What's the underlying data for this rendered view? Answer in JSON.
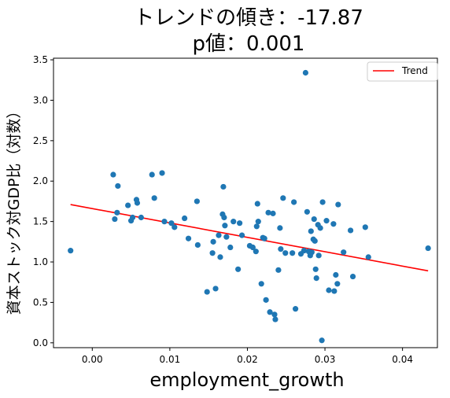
{
  "chart_data": {
    "type": "scatter",
    "title_lines": [
      "トレンドの傾き：-17.87",
      "p値：0.001"
    ],
    "xlabel": "employment_growth",
    "ylabel": "資本ストック対GDP比（対数）",
    "xlim": [
      -0.005,
      0.0445
    ],
    "ylim": [
      -0.06,
      3.52
    ],
    "xticks": [
      0.0,
      0.01,
      0.02,
      0.03,
      0.04
    ],
    "xtick_labels": [
      "0.00",
      "0.01",
      "0.02",
      "0.03",
      "0.04"
    ],
    "yticks": [
      0.0,
      0.5,
      1.0,
      1.5,
      2.0,
      2.5,
      3.0,
      3.5
    ],
    "ytick_labels": [
      "0.0",
      "0.5",
      "1.0",
      "1.5",
      "2.0",
      "2.5",
      "3.0",
      "3.5"
    ],
    "grid": false,
    "legend_position": "top-right",
    "point_color": "#1f77b4",
    "trend": {
      "name": "Trend",
      "color": "#ff0000",
      "x": [
        -0.0028,
        0.0433
      ],
      "y": [
        1.71,
        0.89
      ]
    },
    "points": [
      [
        -0.0028,
        1.14
      ],
      [
        0.0027,
        2.08
      ],
      [
        0.0029,
        1.53
      ],
      [
        0.0032,
        1.61
      ],
      [
        0.0033,
        1.94
      ],
      [
        0.0046,
        1.7
      ],
      [
        0.005,
        1.51
      ],
      [
        0.0052,
        1.55
      ],
      [
        0.0057,
        1.77
      ],
      [
        0.0058,
        1.73
      ],
      [
        0.0063,
        1.55
      ],
      [
        0.0077,
        2.08
      ],
      [
        0.008,
        1.79
      ],
      [
        0.009,
        2.1
      ],
      [
        0.0093,
        1.5
      ],
      [
        0.0102,
        1.48
      ],
      [
        0.0106,
        1.43
      ],
      [
        0.0119,
        1.54
      ],
      [
        0.0124,
        1.29
      ],
      [
        0.0135,
        1.75
      ],
      [
        0.0136,
        1.21
      ],
      [
        0.0148,
        0.63
      ],
      [
        0.0155,
        1.11
      ],
      [
        0.0156,
        1.25
      ],
      [
        0.0159,
        0.67
      ],
      [
        0.0163,
        1.33
      ],
      [
        0.0165,
        1.06
      ],
      [
        0.0168,
        1.59
      ],
      [
        0.0169,
        1.93
      ],
      [
        0.017,
        1.55
      ],
      [
        0.0171,
        1.45
      ],
      [
        0.0173,
        1.31
      ],
      [
        0.0178,
        1.18
      ],
      [
        0.0182,
        1.5
      ],
      [
        0.0188,
        0.91
      ],
      [
        0.019,
        1.48
      ],
      [
        0.0193,
        1.33
      ],
      [
        0.0203,
        1.2
      ],
      [
        0.0207,
        1.18
      ],
      [
        0.0211,
        1.13
      ],
      [
        0.0212,
        1.44
      ],
      [
        0.0213,
        1.72
      ],
      [
        0.0214,
        1.5
      ],
      [
        0.0218,
        0.73
      ],
      [
        0.022,
        1.3
      ],
      [
        0.0222,
        1.29
      ],
      [
        0.0224,
        0.53
      ],
      [
        0.0227,
        1.61
      ],
      [
        0.0229,
        0.38
      ],
      [
        0.0233,
        1.6
      ],
      [
        0.0235,
        0.35
      ],
      [
        0.0236,
        0.29
      ],
      [
        0.024,
        0.9
      ],
      [
        0.0242,
        1.42
      ],
      [
        0.0243,
        1.16
      ],
      [
        0.0246,
        1.79
      ],
      [
        0.0249,
        1.11
      ],
      [
        0.0258,
        1.11
      ],
      [
        0.026,
        1.74
      ],
      [
        0.0262,
        0.42
      ],
      [
        0.0269,
        1.1
      ],
      [
        0.0273,
        1.14
      ],
      [
        0.0275,
        3.34
      ],
      [
        0.0277,
        1.62
      ],
      [
        0.0279,
        1.13
      ],
      [
        0.0281,
        1.08
      ],
      [
        0.0282,
        1.38
      ],
      [
        0.0283,
        1.12
      ],
      [
        0.0285,
        1.28
      ],
      [
        0.0286,
        1.53
      ],
      [
        0.0287,
        1.26
      ],
      [
        0.0288,
        0.91
      ],
      [
        0.0289,
        0.8
      ],
      [
        0.0291,
        1.46
      ],
      [
        0.0292,
        1.08
      ],
      [
        0.0294,
        1.42
      ],
      [
        0.0296,
        0.03
      ],
      [
        0.0297,
        1.74
      ],
      [
        0.0302,
        1.51
      ],
      [
        0.0305,
        0.65
      ],
      [
        0.0311,
        1.47
      ],
      [
        0.0312,
        0.64
      ],
      [
        0.0314,
        0.84
      ],
      [
        0.0316,
        0.73
      ],
      [
        0.0317,
        1.71
      ],
      [
        0.0324,
        1.12
      ],
      [
        0.0333,
        1.39
      ],
      [
        0.0336,
        0.82
      ],
      [
        0.0352,
        1.43
      ],
      [
        0.0356,
        1.06
      ],
      [
        0.0433,
        1.17
      ]
    ]
  }
}
